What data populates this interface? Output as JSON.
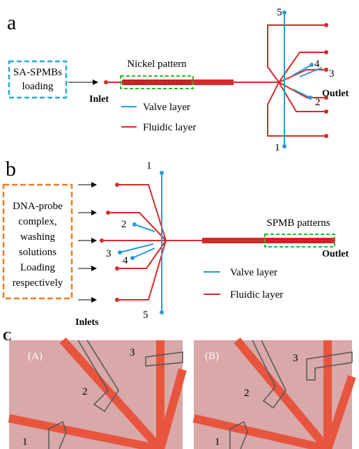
{
  "panel_a": {
    "label": "a",
    "loading_box": [
      "SA-SPMBs",
      "loading"
    ],
    "inlet": "Inlet",
    "pattern": "Nickel pattern",
    "outlet": "Outlet",
    "valves": [
      "5",
      "4",
      "3",
      "2",
      "1"
    ],
    "legend": [
      "Valve layer",
      "Fluidic layer"
    ]
  },
  "panel_b": {
    "label": "b",
    "loading_box": [
      "DNA-probe",
      "complex,",
      "washing",
      "solutions",
      "Loading",
      "respectively"
    ],
    "inlets": "Inlets",
    "pattern": "SPMB patterns",
    "outlet": "Outlet",
    "valves": [
      "1",
      "2",
      "3",
      "4",
      "5"
    ],
    "legend": [
      "Valve layer",
      "Fluidic layer"
    ]
  },
  "panel_c": {
    "label": "C",
    "images": [
      {
        "label": "(A)",
        "valves": [
          "1",
          "2",
          "3"
        ]
      },
      {
        "label": "(B)",
        "valves": [
          "1",
          "2",
          "3"
        ]
      }
    ]
  }
}
